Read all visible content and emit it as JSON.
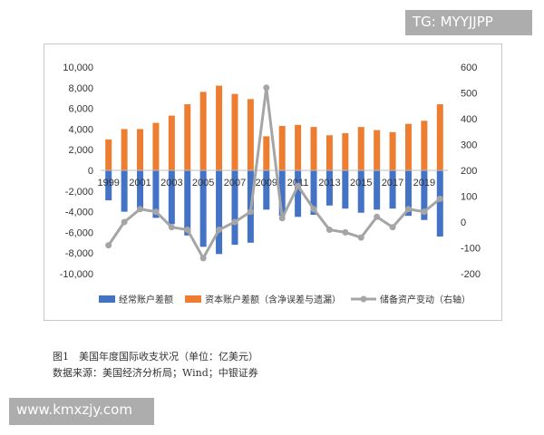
{
  "watermark_top": "TG: MYYJJPP",
  "watermark_bottom": "www.kmxzjy.com",
  "caption": {
    "title": "图1　美国年度国际收支状况（单位：亿美元）",
    "source": "数据来源：美国经济分析局；Wind；中银证券"
  },
  "colors": {
    "blue": "#4472c4",
    "orange": "#ed7d31",
    "gray": "#a5a5a5"
  },
  "chart_data": {
    "type": "bar",
    "categories": [
      "1999",
      "2000",
      "2001",
      "2002",
      "2003",
      "2004",
      "2005",
      "2006",
      "2007",
      "2008",
      "2009",
      "2010",
      "2011",
      "2012",
      "2013",
      "2014",
      "2015",
      "2016",
      "2017",
      "2018",
      "2019",
      "2020"
    ],
    "x_tick_labels": [
      "1999",
      "2001",
      "2003",
      "2005",
      "2007",
      "2009",
      "2011",
      "2013",
      "2015",
      "2017",
      "2019"
    ],
    "series": [
      {
        "name": "经常账户差额",
        "axis": "left",
        "type": "bar",
        "values": [
          -2900,
          -4000,
          -3900,
          -4600,
          -5200,
          -6300,
          -7400,
          -8100,
          -7200,
          -7000,
          -3800,
          -4400,
          -4500,
          -4300,
          -3400,
          -3700,
          -4100,
          -3800,
          -3700,
          -4400,
          -4800,
          -6400
        ]
      },
      {
        "name": "资本账户差额（含净误差与遗漏）",
        "axis": "left",
        "type": "bar",
        "values": [
          3000,
          4000,
          4000,
          4600,
          5300,
          6400,
          7600,
          8200,
          7400,
          6900,
          3300,
          4300,
          4400,
          4200,
          3400,
          3600,
          4200,
          3900,
          3700,
          4500,
          4800,
          6400
        ]
      },
      {
        "name": "储备资产变动（右轴）",
        "axis": "right",
        "type": "line",
        "values": [
          -90,
          0,
          50,
          40,
          -20,
          -30,
          -140,
          -30,
          0,
          40,
          520,
          15,
          140,
          50,
          -30,
          -40,
          -60,
          20,
          -20,
          50,
          40,
          90
        ]
      }
    ],
    "y_left": {
      "min": -10000,
      "max": 10000,
      "step": 2000,
      "tick_labels": [
        "10,000",
        "8,000",
        "6,000",
        "4,000",
        "2,000",
        "0",
        "-2,000",
        "-4,000",
        "-6,000",
        "-8,000",
        "-10,000"
      ]
    },
    "y_right": {
      "min": -200,
      "max": 600,
      "step": 100,
      "tick_labels": [
        "600",
        "500",
        "400",
        "300",
        "200",
        "100",
        "0",
        "-100",
        "-200"
      ]
    },
    "legend_position": "bottom",
    "grid": false
  }
}
